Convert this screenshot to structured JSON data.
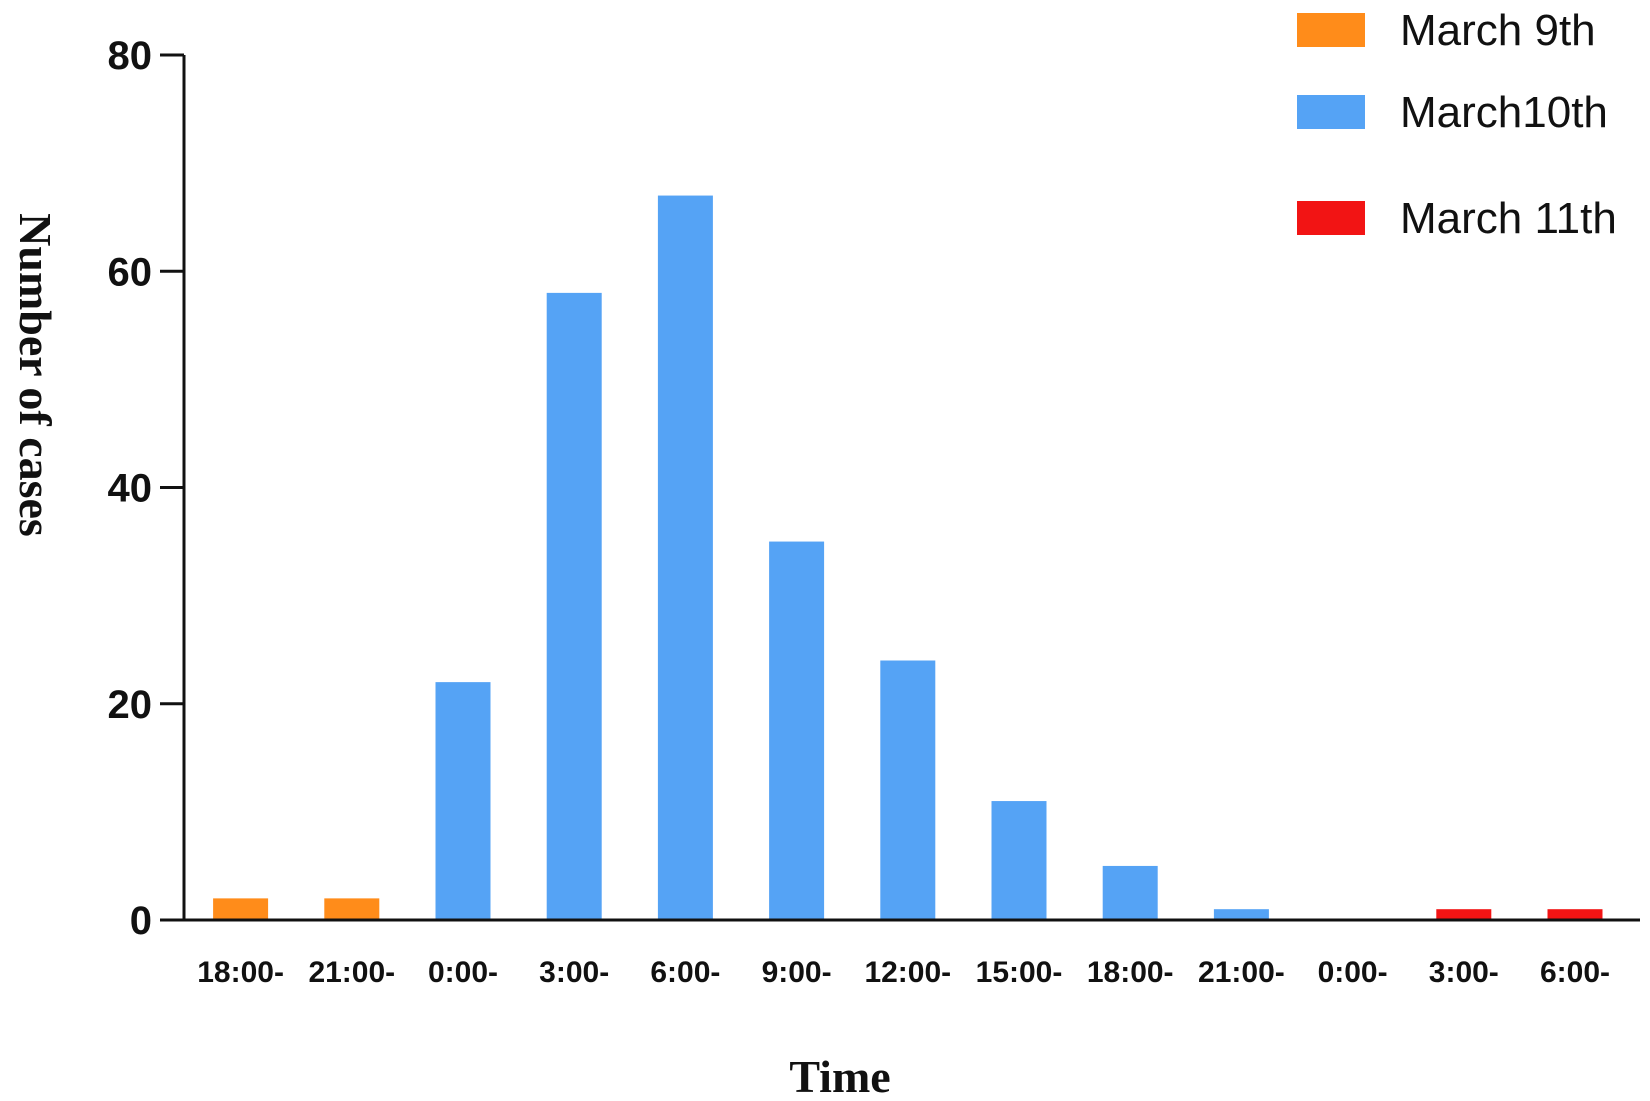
{
  "chart_data": {
    "type": "bar",
    "xlabel": "Time",
    "ylabel": "Number of cases",
    "ylim": [
      0,
      80
    ],
    "yticks": [
      0,
      20,
      40,
      60,
      80
    ],
    "grid": false,
    "legend_position": "top-right",
    "categories": [
      "18:00-",
      "21:00-",
      "0:00-",
      "3:00-",
      "6:00-",
      "9:00-",
      "12:00-",
      "15:00-",
      "18:00-",
      "21:00-",
      "0:00-",
      "3:00-",
      "6:00-"
    ],
    "values": [
      2,
      2,
      22,
      58,
      67,
      35,
      24,
      11,
      5,
      1,
      0,
      1,
      1
    ],
    "bar_series": [
      0,
      0,
      1,
      1,
      1,
      1,
      1,
      1,
      1,
      1,
      1,
      2,
      2
    ],
    "series": [
      {
        "name": "March 9th",
        "color": "#FF8C1A"
      },
      {
        "name": "March10th",
        "color": "#55A3F5"
      },
      {
        "name": "March 11th",
        "color": "#F21414"
      }
    ]
  }
}
